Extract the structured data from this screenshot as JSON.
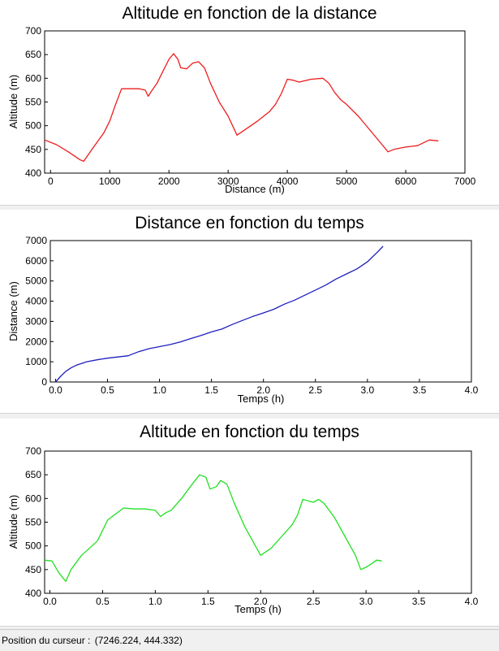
{
  "status": {
    "cursor_label": "Position du curseur : ",
    "cursor_value": "(7246.224, 444.332)"
  },
  "chart_data": [
    {
      "type": "line",
      "title": "Altitude en fonction de la distance",
      "xlabel": "Distance (m)",
      "ylabel": "Altitude (m)",
      "xlim": [
        -100,
        7000
      ],
      "ylim": [
        400,
        700
      ],
      "xticks": [
        0,
        1000,
        2000,
        3000,
        4000,
        5000,
        6000,
        7000
      ],
      "xtick_labels": [
        "0",
        "1000",
        "2000",
        "3000",
        "4000",
        "5000",
        "6000",
        "7000"
      ],
      "yticks": [
        400,
        450,
        500,
        550,
        600,
        650,
        700
      ],
      "ytick_labels": [
        "400",
        "450",
        "500",
        "550",
        "600",
        "650",
        "700"
      ],
      "color": "#ee1c1c",
      "series": [
        {
          "x": [
            -100,
            100,
            300,
            500,
            560,
            700,
            900,
            1000,
            1100,
            1200,
            1400,
            1500,
            1600,
            1650,
            1700,
            1800,
            1900,
            2000,
            2080,
            2150,
            2200,
            2300,
            2400,
            2500,
            2600,
            2700,
            2850,
            3000,
            3150,
            3300,
            3500,
            3700,
            3800,
            3900,
            4000,
            4100,
            4200,
            4400,
            4600,
            4700,
            4800,
            4900,
            5000,
            5200,
            5400,
            5600,
            5700,
            5800,
            6000,
            6200,
            6400,
            6550
          ],
          "y": [
            470,
            460,
            445,
            428,
            425,
            450,
            485,
            510,
            545,
            578,
            578,
            578,
            575,
            562,
            572,
            590,
            615,
            640,
            652,
            640,
            622,
            620,
            632,
            635,
            622,
            590,
            550,
            520,
            480,
            493,
            510,
            530,
            545,
            568,
            598,
            596,
            592,
            598,
            600,
            590,
            570,
            555,
            545,
            520,
            490,
            460,
            445,
            450,
            455,
            458,
            470,
            468
          ]
        }
      ]
    },
    {
      "type": "line",
      "title": "Distance en fonction du temps",
      "xlabel": "Temps (h)",
      "ylabel": "Distance (m)",
      "xlim": [
        -0.05,
        4.0
      ],
      "ylim": [
        0,
        7000
      ],
      "xticks": [
        0.0,
        0.5,
        1.0,
        1.5,
        2.0,
        2.5,
        3.0,
        3.5,
        4.0
      ],
      "xtick_labels": [
        "0.0",
        "0.5",
        "1.0",
        "1.5",
        "2.0",
        "2.5",
        "3.0",
        "3.5",
        "4.0"
      ],
      "yticks": [
        0,
        1000,
        2000,
        3000,
        4000,
        5000,
        6000,
        7000
      ],
      "ytick_labels": [
        "0",
        "1000",
        "2000",
        "3000",
        "4000",
        "5000",
        "6000",
        "7000"
      ],
      "color": "#1f1fbf",
      "series": [
        {
          "x": [
            0.0,
            0.05,
            0.1,
            0.15,
            0.2,
            0.3,
            0.4,
            0.5,
            0.6,
            0.7,
            0.8,
            0.9,
            1.0,
            1.1,
            1.2,
            1.3,
            1.4,
            1.5,
            1.6,
            1.7,
            1.8,
            1.9,
            2.0,
            2.1,
            2.2,
            2.3,
            2.4,
            2.5,
            2.6,
            2.7,
            2.8,
            2.9,
            3.0,
            3.1,
            3.15
          ],
          "y": [
            0,
            280,
            530,
            700,
            830,
            1000,
            1100,
            1180,
            1240,
            1300,
            1500,
            1650,
            1750,
            1850,
            1980,
            2150,
            2300,
            2480,
            2620,
            2850,
            3050,
            3250,
            3420,
            3600,
            3850,
            4050,
            4300,
            4550,
            4800,
            5100,
            5350,
            5600,
            5950,
            6450,
            6720
          ]
        }
      ]
    },
    {
      "type": "line",
      "title": "Altitude en fonction du temps",
      "xlabel": "Temps (h)",
      "ylabel": "Altitude (m)",
      "xlim": [
        -0.05,
        4.0
      ],
      "ylim": [
        400,
        700
      ],
      "xticks": [
        0.0,
        0.5,
        1.0,
        1.5,
        2.0,
        2.5,
        3.0,
        3.5,
        4.0
      ],
      "xtick_labels": [
        "0.0",
        "0.5",
        "1.0",
        "1.5",
        "2.0",
        "2.5",
        "3.0",
        "3.5",
        "4.0"
      ],
      "yticks": [
        400,
        450,
        500,
        550,
        600,
        650,
        700
      ],
      "ytick_labels": [
        "400",
        "450",
        "500",
        "550",
        "600",
        "650",
        "700"
      ],
      "color": "#22e022",
      "series": [
        {
          "x": [
            -0.05,
            0.02,
            0.08,
            0.15,
            0.2,
            0.3,
            0.45,
            0.55,
            0.7,
            0.8,
            0.9,
            1.0,
            1.05,
            1.1,
            1.15,
            1.25,
            1.35,
            1.42,
            1.48,
            1.52,
            1.58,
            1.62,
            1.68,
            1.75,
            1.85,
            1.95,
            2.0,
            2.1,
            2.2,
            2.3,
            2.35,
            2.4,
            2.5,
            2.55,
            2.6,
            2.7,
            2.8,
            2.9,
            2.95,
            3.0,
            3.05,
            3.1,
            3.15
          ],
          "y": [
            470,
            468,
            445,
            425,
            450,
            480,
            510,
            555,
            580,
            578,
            578,
            575,
            562,
            570,
            575,
            600,
            630,
            650,
            645,
            620,
            625,
            638,
            630,
            590,
            540,
            500,
            480,
            495,
            520,
            545,
            565,
            598,
            592,
            598,
            590,
            560,
            520,
            480,
            450,
            455,
            462,
            470,
            468
          ]
        }
      ]
    }
  ]
}
